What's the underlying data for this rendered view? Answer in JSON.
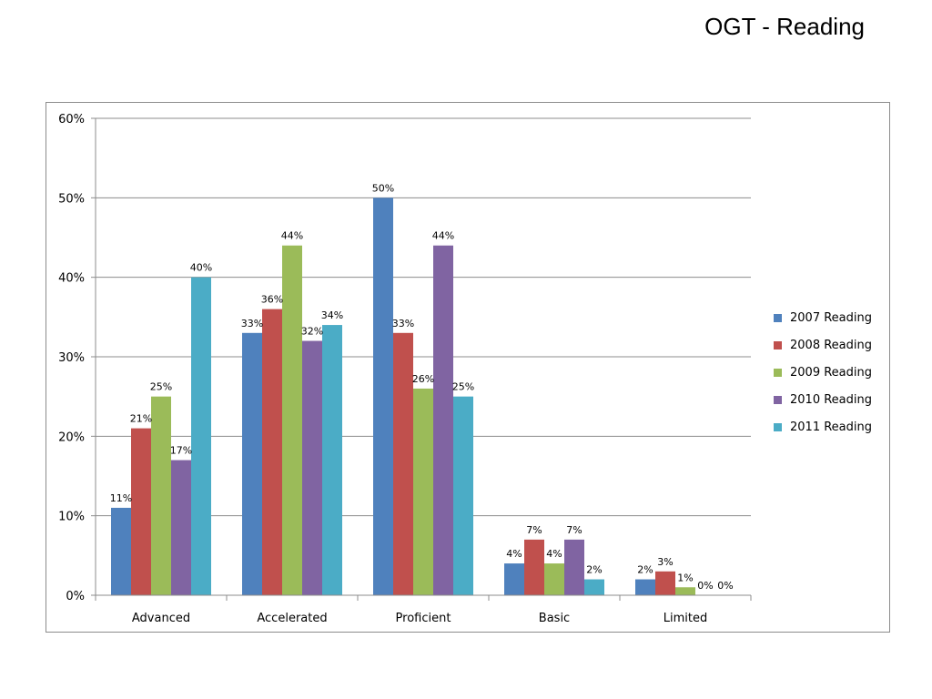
{
  "slide": {
    "title": "OGT - Reading"
  },
  "chart_data": {
    "type": "bar",
    "title": "",
    "xlabel": "",
    "ylabel": "",
    "categories": [
      "Advanced",
      "Accelerated",
      "Proficient",
      "Basic",
      "Limited"
    ],
    "series": [
      {
        "name": "2007 Reading",
        "color": "#4f81bd",
        "values": [
          11,
          33,
          50,
          4,
          2
        ]
      },
      {
        "name": "2008 Reading",
        "color": "#c0504d",
        "values": [
          21,
          36,
          33,
          7,
          3
        ]
      },
      {
        "name": "2009 Reading",
        "color": "#9bbb59",
        "values": [
          25,
          44,
          26,
          4,
          1
        ]
      },
      {
        "name": "2010 Reading",
        "color": "#8064a2",
        "values": [
          17,
          32,
          44,
          7,
          0
        ]
      },
      {
        "name": "2011 Reading",
        "color": "#4bacc6",
        "values": [
          40,
          34,
          25,
          2,
          0
        ]
      }
    ],
    "ylim": [
      0,
      60
    ],
    "yticks": [
      0,
      10,
      20,
      30,
      40,
      50,
      60
    ],
    "ytick_labels": [
      "0%",
      "10%",
      "20%",
      "30%",
      "40%",
      "50%",
      "60%"
    ],
    "data_labels": [
      [
        "11%",
        "33%",
        "50%",
        "4%",
        "2%"
      ],
      [
        "21%",
        "36%",
        "33%",
        "7%",
        "3%"
      ],
      [
        "25%",
        "44%",
        "26%",
        "4%",
        "1%"
      ],
      [
        "17%",
        "32%",
        "44%",
        "7%",
        "0%"
      ],
      [
        "40%",
        "34%",
        "25%",
        "2%",
        "0%"
      ]
    ],
    "value_format": "percent",
    "grid": true,
    "legend_position": "right"
  }
}
